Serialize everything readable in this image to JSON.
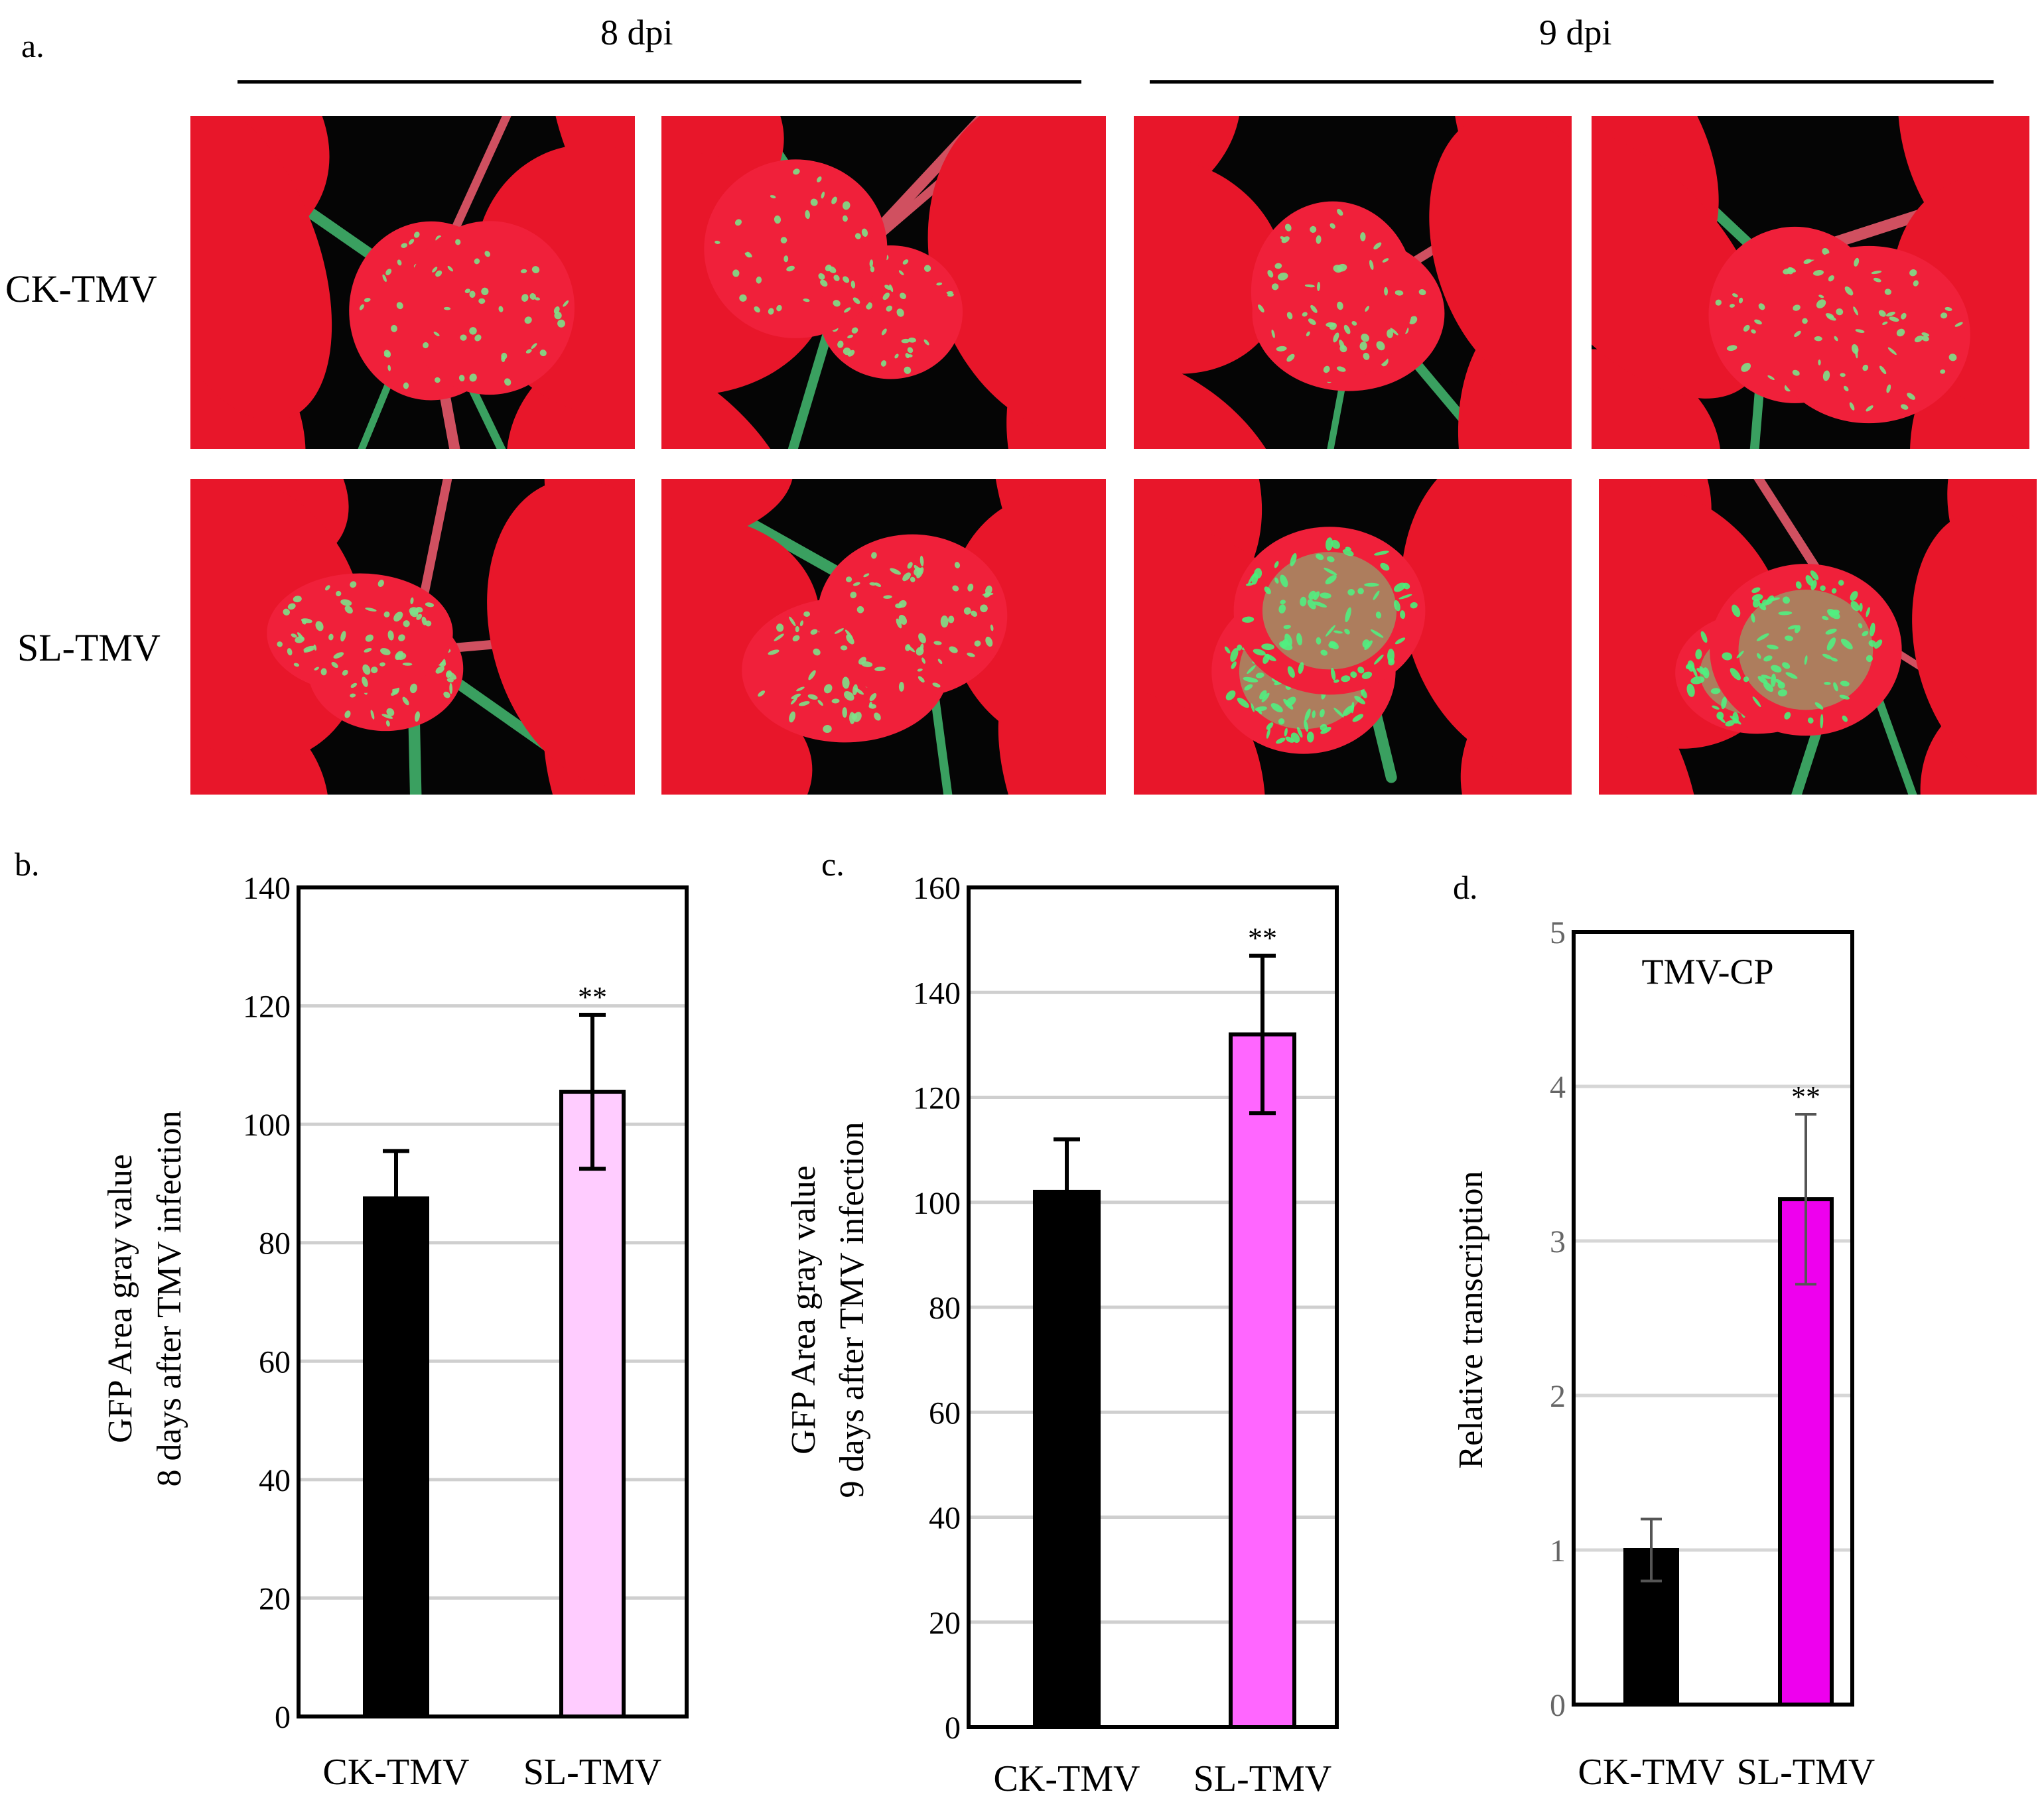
{
  "panel_a": {
    "label": "a.",
    "groups": [
      "8 dpi",
      "9 dpi"
    ],
    "rows": [
      "CK-TMV",
      "SL-TMV"
    ]
  },
  "chart_data": [
    {
      "panel": "b.",
      "type": "bar",
      "categories": [
        "CK-TMV",
        "SL-TMV"
      ],
      "values": [
        87.5,
        105.5
      ],
      "errors": [
        8,
        13
      ],
      "significance": [
        "",
        "**"
      ],
      "colors": [
        "#000000",
        "#ffccff"
      ],
      "ylabel_lines": [
        "GFP Area gray  value",
        "8 days after TMV infection"
      ],
      "ylim": [
        0,
        140
      ],
      "yticks": [
        0,
        20,
        40,
        60,
        80,
        100,
        120,
        140
      ],
      "grid": true,
      "legend": "none"
    },
    {
      "panel": "c.",
      "type": "bar",
      "categories": [
        "CK-TMV",
        "SL-TMV"
      ],
      "values": [
        102,
        132
      ],
      "errors": [
        10,
        15
      ],
      "significance": [
        "",
        "**"
      ],
      "colors": [
        "#000000",
        "#ff66ff"
      ],
      "ylabel_lines": [
        "GFP Area gray  value",
        "9 days after TMV infection"
      ],
      "ylim": [
        0,
        160
      ],
      "yticks": [
        0,
        20,
        40,
        60,
        80,
        100,
        120,
        140,
        160
      ],
      "grid": true,
      "legend": "none"
    },
    {
      "panel": "d.",
      "type": "bar",
      "title": "TMV-CP",
      "categories": [
        "CK-TMV",
        "SL-TMV"
      ],
      "values": [
        1.0,
        3.27
      ],
      "errors": [
        0.2,
        0.55
      ],
      "significance": [
        "",
        "**"
      ],
      "colors": [
        "#000000",
        "#ee00ee"
      ],
      "ylabel_lines": [
        "Relative transcription"
      ],
      "ylim": [
        0,
        5
      ],
      "yticks": [
        0,
        1,
        2,
        3,
        4,
        5
      ],
      "grid": true,
      "legend": "none"
    }
  ]
}
